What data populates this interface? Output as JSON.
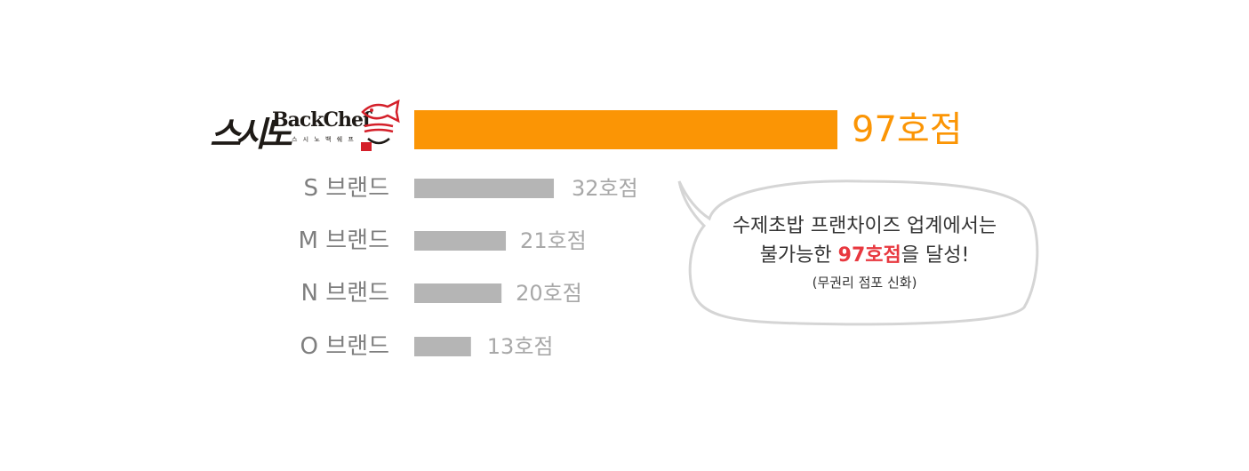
{
  "chart_data": {
    "type": "bar",
    "orientation": "horizontal",
    "categories": [
      "스시노백쉐프",
      "S 브랜드",
      "M 브랜드",
      "N 브랜드",
      "O 브랜드"
    ],
    "values": [
      97,
      32,
      21,
      20,
      13
    ],
    "value_labels": [
      "97호점",
      "32호점",
      "21호점",
      "20호점",
      "13호점"
    ],
    "highlight_color": "#fb9505",
    "bar_color": "#b5b5b5",
    "label_color": "#7f7f7f"
  },
  "logo": {
    "korean": "스시노",
    "english": "BackChef",
    "subtitle": "스 시 노 백 쉐 프",
    "brand_color": "#1e1a16",
    "accent_color": "#d4202a"
  },
  "bubble": {
    "line1": "수제초밥 프랜차이즈 업계에서는",
    "line2_pre": "불가능한 ",
    "line2_highlight": "97호점",
    "line2_post": "을 달성!",
    "sub": "(무권리 점포 신화)",
    "highlight_color": "#e8383f"
  }
}
